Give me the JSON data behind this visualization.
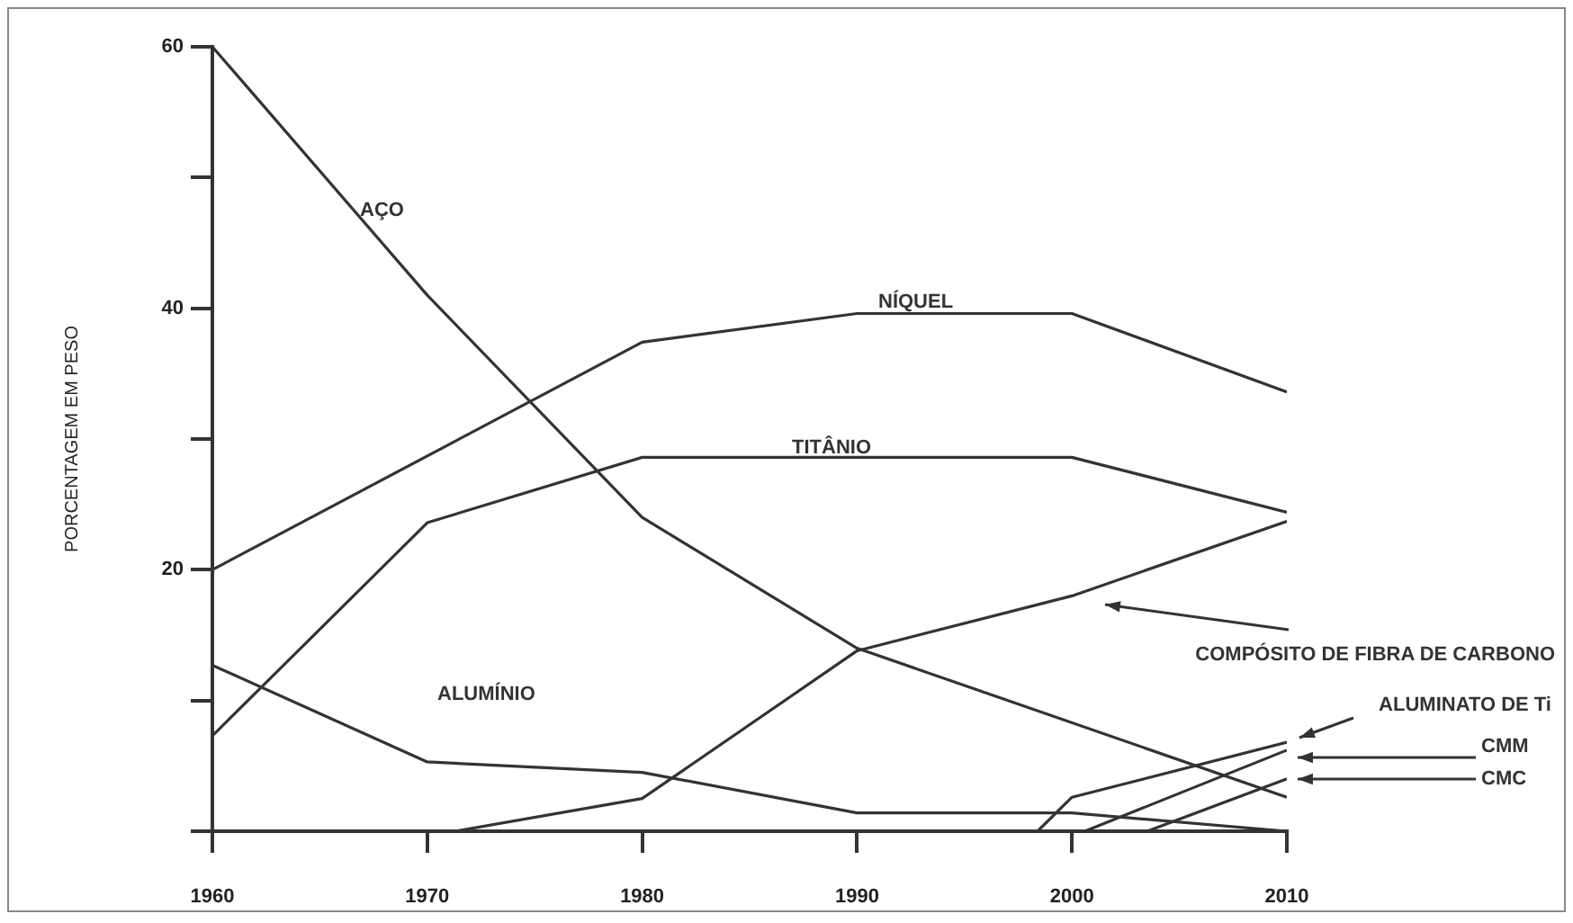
{
  "chart_data": {
    "type": "line",
    "ylabel": "PORCENTAGEM EM PESO",
    "xlim": [
      1960,
      2010
    ],
    "xticks": [
      1960,
      1970,
      1980,
      1990,
      2000,
      2010
    ],
    "ylim": [
      0,
      60
    ],
    "yticks": [
      {
        "value": 0,
        "label": null
      },
      {
        "value": 10,
        "label": null
      },
      20,
      {
        "value": 30,
        "label": null
      },
      40,
      {
        "value": 50,
        "label": null
      },
      60
    ],
    "grid": false,
    "legend": false,
    "marker": "none",
    "line_style": "solid",
    "series": [
      {
        "name": "AÇO",
        "color": "#333333",
        "x": [
          1960,
          1970,
          1980,
          1990,
          2010
        ],
        "values": [
          60,
          41,
          24,
          14,
          2.6
        ]
      },
      {
        "name": "NÍQUEL",
        "color": "#333333",
        "x": [
          1960,
          1980,
          1990,
          2000,
          2010
        ],
        "values": [
          20,
          37.4,
          39.6,
          39.6,
          33.6
        ]
      },
      {
        "name": "TITÂNIO",
        "color": "#333333",
        "x": [
          1960,
          1970,
          1980,
          2000,
          2010
        ],
        "values": [
          7.3,
          23.6,
          28.6,
          28.6,
          24.4
        ]
      },
      {
        "name": "ALUMÍNIO",
        "color": "#333333",
        "x": [
          1960,
          1970,
          1980,
          1990,
          2000,
          2010
        ],
        "values": [
          12.7,
          5.3,
          4.5,
          1.4,
          1.4,
          0
        ]
      },
      {
        "name": "COMPÓSITO DE FIBRA DE CARBONO",
        "color": "#333333",
        "x": [
          1971.3,
          1980,
          1990,
          2000,
          2010
        ],
        "values": [
          0,
          2.5,
          13.8,
          18,
          23.7
        ]
      },
      {
        "name": "ALUMINATO DE Ti",
        "color": "#333333",
        "x": [
          1998.4,
          2000,
          2010
        ],
        "values": [
          0,
          2.6,
          6.8
        ]
      },
      {
        "name": "CMM",
        "color": "#333333",
        "x": [
          2000.6,
          2010
        ],
        "values": [
          0,
          6.2
        ]
      },
      {
        "name": "CMC",
        "color": "#333333",
        "x": [
          2003.5,
          2010
        ],
        "values": [
          0,
          4
        ]
      }
    ]
  }
}
